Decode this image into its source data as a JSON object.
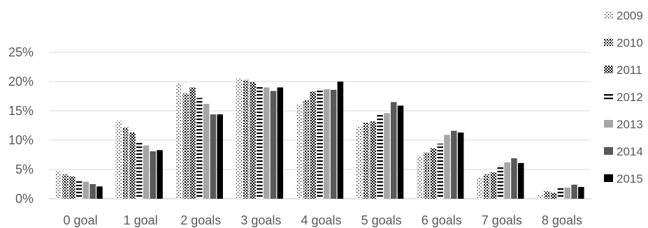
{
  "chart_data": {
    "type": "bar",
    "title": "",
    "xlabel": "",
    "ylabel": "",
    "ylim": [
      0,
      0.25
    ],
    "y_ticks": [
      0,
      0.05,
      0.1,
      0.15,
      0.2,
      0.25
    ],
    "y_tick_labels": [
      "0%",
      "5%",
      "10%",
      "15%",
      "20%",
      "25%"
    ],
    "grid": "horizontal",
    "legend_position": "right",
    "categories": [
      "0 goal",
      "1 goal",
      "2 goals",
      "3 goals",
      "4 goals",
      "5 goals",
      "6 goals",
      "7 goals",
      "8 goals"
    ],
    "series": [
      {
        "name": "2009",
        "pattern": "sparse-dots",
        "color": "#000000",
        "values": [
          0.047,
          0.133,
          0.197,
          0.205,
          0.16,
          0.124,
          0.073,
          0.037,
          0.007
        ]
      },
      {
        "name": "2010",
        "pattern": "dots",
        "color": "#000000",
        "values": [
          0.042,
          0.122,
          0.18,
          0.203,
          0.168,
          0.13,
          0.079,
          0.042,
          0.013
        ]
      },
      {
        "name": "2011",
        "pattern": "checker",
        "color": "#000000",
        "values": [
          0.038,
          0.113,
          0.19,
          0.199,
          0.183,
          0.132,
          0.086,
          0.045,
          0.01
        ]
      },
      {
        "name": "2012",
        "pattern": "horizontal-dashes",
        "color": "#000000",
        "values": [
          0.03,
          0.097,
          0.172,
          0.193,
          0.188,
          0.143,
          0.094,
          0.057,
          0.018
        ]
      },
      {
        "name": "2013",
        "pattern": "solid",
        "color": "#a6a6a6",
        "values": [
          0.029,
          0.091,
          0.162,
          0.19,
          0.187,
          0.146,
          0.109,
          0.062,
          0.019
        ]
      },
      {
        "name": "2014",
        "pattern": "solid",
        "color": "#595959",
        "values": [
          0.025,
          0.081,
          0.144,
          0.184,
          0.186,
          0.165,
          0.116,
          0.069,
          0.024
        ]
      },
      {
        "name": "2015",
        "pattern": "solid",
        "color": "#000000",
        "values": [
          0.021,
          0.083,
          0.144,
          0.19,
          0.2,
          0.159,
          0.113,
          0.061,
          0.02
        ]
      }
    ]
  }
}
